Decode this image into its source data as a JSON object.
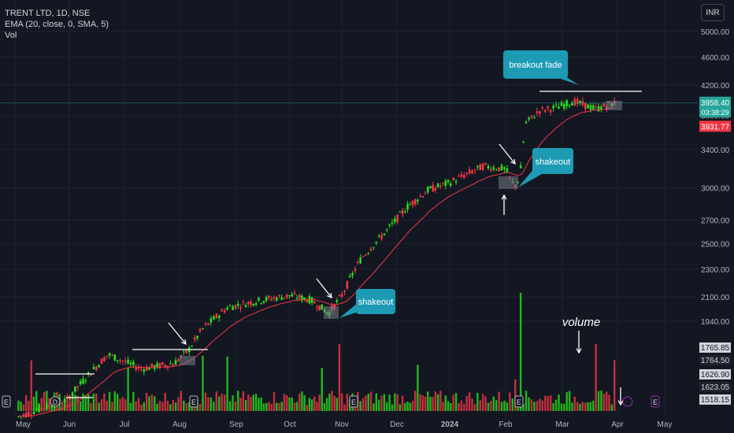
{
  "header": {
    "symbol_line": "TRENT LTD, 1D, NSE",
    "ema_line": "EMA (20, close, 0, SMA, 5)",
    "vol_line": "Vol",
    "currency": "INR"
  },
  "colors": {
    "background": "#131722",
    "up": "#26e01a",
    "down": "#f23645",
    "ema": "#f23645",
    "callout": "#1e9bb4",
    "annotation": "#ffffff",
    "price_label": "#26a69a",
    "ema_label": "#f23645"
  },
  "chart_data": {
    "type": "candlestick",
    "title": "TRENT LTD, 1D, NSE",
    "y_scale": "log",
    "y_ticks": [
      "5000.00",
      "4600.00",
      "4200.00",
      "3800.00",
      "3400.00",
      "3000.00",
      "2700.00",
      "2500.00",
      "2300.00",
      "2100.00",
      "1940.00"
    ],
    "x_ticks": [
      "May",
      "Jun",
      "Jul",
      "Aug",
      "Sep",
      "Oct",
      "Nov",
      "Dec",
      "2024",
      "Feb",
      "Mar",
      "Apr",
      "May"
    ],
    "price_labels": {
      "last": "3958.40",
      "countdown": "03:38:29",
      "ema": "3931.77"
    },
    "volume_scale_labels": [
      "1765.85",
      "1764.50",
      "1626.90",
      "1623.05",
      "1518.15"
    ],
    "price_series": {
      "description": "approximate daily closes",
      "points": [
        [
          "May",
          1420
        ],
        [
          "Jun",
          1500
        ],
        [
          "Jul",
          1720
        ],
        [
          "Jul-mid",
          1670
        ],
        [
          "Aug",
          1690
        ],
        [
          "Aug-mid",
          1880
        ],
        [
          "Sep",
          2030
        ],
        [
          "Oct",
          2120
        ],
        [
          "Oct-end",
          1980
        ],
        [
          "Nov",
          2150
        ],
        [
          "Dec",
          2820
        ],
        [
          "2024",
          3050
        ],
        [
          "Feb",
          3200
        ],
        [
          "Feb-mid",
          3010
        ],
        [
          "Feb-end",
          3780
        ],
        [
          "Mar",
          3960
        ],
        [
          "Apr",
          3958.4
        ]
      ]
    },
    "ema": {
      "length": 20,
      "last": 3931.77
    },
    "annotations": [
      {
        "type": "callout",
        "text": "breakout fade"
      },
      {
        "type": "callout",
        "text": "shakeout"
      },
      {
        "type": "callout",
        "text": "shakeout"
      },
      {
        "type": "text",
        "text": "volume"
      }
    ],
    "event_markers": [
      "E",
      "D",
      "E",
      "E",
      "E",
      "E",
      "E",
      "E",
      "E",
      "E",
      "E"
    ],
    "grid": true,
    "legend": "top-left"
  }
}
